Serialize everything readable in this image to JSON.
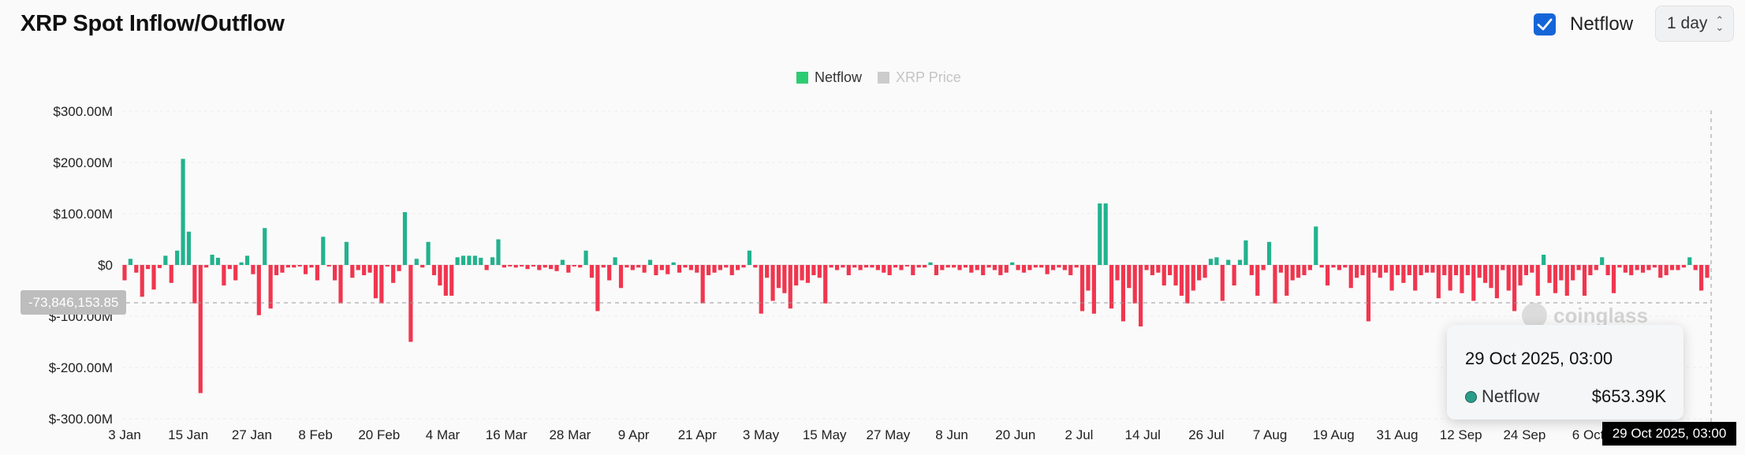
{
  "header": {
    "title": "XRP Spot Inflow/Outflow",
    "netflow_label": "Netflow",
    "interval": "1 day"
  },
  "colors": {
    "positive": "#22b28e",
    "negative": "#f0364f",
    "netflow_legend": "#2ecc71",
    "price_legend": "#cccccc",
    "accent": "#1565d8"
  },
  "legend": [
    {
      "name": "Netflow",
      "active": true
    },
    {
      "name": "XRP Price",
      "active": false
    }
  ],
  "tooltip": {
    "date": "29 Oct 2025, 03:00",
    "series": "Netflow",
    "value": "$653.39K"
  },
  "cursor": {
    "y_label": "-73,846,153.85",
    "x_label": "29 Oct 2025, 03:00"
  },
  "watermark": "coinglass",
  "chart_data": {
    "type": "bar",
    "ylim": [
      -300,
      300
    ],
    "unit": "$M",
    "y_ticks": [
      "$300.00M",
      "$200.00M",
      "$100.00M",
      "$0",
      "$-100.00M",
      "$-200.00M",
      "$-300.00M"
    ],
    "x_ticks": [
      "3 Jan",
      "15 Jan",
      "27 Jan",
      "8 Feb",
      "20 Feb",
      "4 Mar",
      "16 Mar",
      "28 Mar",
      "9 Apr",
      "21 Apr",
      "3 May",
      "15 May",
      "27 May",
      "8 Jun",
      "20 Jun",
      "2 Jul",
      "14 Jul",
      "26 Jul",
      "7 Aug",
      "19 Aug",
      "31 Aug",
      "12 Sep",
      "24 Sep",
      "6 Oct"
    ],
    "series": [
      {
        "name": "Netflow",
        "values": [
          -30,
          12,
          -15,
          -62,
          -8,
          -48,
          -6,
          18,
          -35,
          28,
          207,
          65,
          -75,
          -250,
          -5,
          20,
          14,
          -40,
          -8,
          -30,
          5,
          18,
          -18,
          -98,
          72,
          -85,
          -20,
          -15,
          -5,
          -5,
          -3,
          -18,
          -5,
          -30,
          55,
          -3,
          -30,
          -75,
          45,
          -25,
          -10,
          -20,
          -15,
          -65,
          -75,
          -3,
          -35,
          -12,
          103,
          -150,
          12,
          -5,
          45,
          -20,
          -40,
          -60,
          -60,
          15,
          18,
          18,
          18,
          14,
          -10,
          15,
          50,
          -5,
          -3,
          -5,
          -3,
          -8,
          -3,
          -10,
          -5,
          -8,
          -12,
          10,
          -15,
          -3,
          -5,
          28,
          -25,
          -90,
          -5,
          -30,
          15,
          -45,
          -5,
          -10,
          -5,
          -15,
          10,
          -20,
          -10,
          -18,
          5,
          -15,
          -5,
          -10,
          -15,
          -75,
          -20,
          -15,
          -10,
          -5,
          -20,
          -10,
          -5,
          28,
          -5,
          -95,
          -25,
          -70,
          -45,
          -55,
          -85,
          -40,
          -30,
          -35,
          -20,
          -25,
          -75,
          -5,
          -10,
          -5,
          -20,
          -5,
          -10,
          -5,
          -5,
          -10,
          -15,
          -20,
          -5,
          -10,
          -3,
          -20,
          -5,
          -5,
          5,
          -20,
          -10,
          -5,
          -5,
          -10,
          -5,
          -15,
          -10,
          -20,
          -5,
          -10,
          -20,
          -15,
          5,
          -10,
          -15,
          -10,
          -5,
          -5,
          -18,
          -10,
          -5,
          -10,
          -20,
          -5,
          -90,
          -50,
          -95,
          120,
          120,
          -85,
          -30,
          -110,
          -45,
          -75,
          -120,
          -10,
          -20,
          -15,
          -40,
          -20,
          -40,
          -60,
          -75,
          -50,
          -30,
          -25,
          12,
          15,
          -70,
          10,
          -40,
          10,
          48,
          -20,
          -60,
          -10,
          45,
          -75,
          -15,
          -60,
          -30,
          -25,
          -20,
          -10,
          75,
          -5,
          -40,
          -5,
          -10,
          -5,
          -45,
          -25,
          -20,
          -110,
          -15,
          -25,
          -15,
          -50,
          -20,
          -35,
          -20,
          -50,
          -20,
          -15,
          -15,
          -65,
          -20,
          -50,
          -20,
          -55,
          -20,
          -70,
          -25,
          -35,
          -45,
          -65,
          -10,
          -50,
          -90,
          -40,
          -20,
          -15,
          -60,
          20,
          -35,
          -55,
          -30,
          -60,
          -30,
          -10,
          -60,
          -20,
          -10,
          15,
          -20,
          -55,
          -5,
          -15,
          -20,
          -10,
          -15,
          -10,
          -5,
          -25,
          -20,
          -10,
          -10,
          -5,
          15,
          -10,
          -50,
          -25
        ]
      }
    ]
  }
}
